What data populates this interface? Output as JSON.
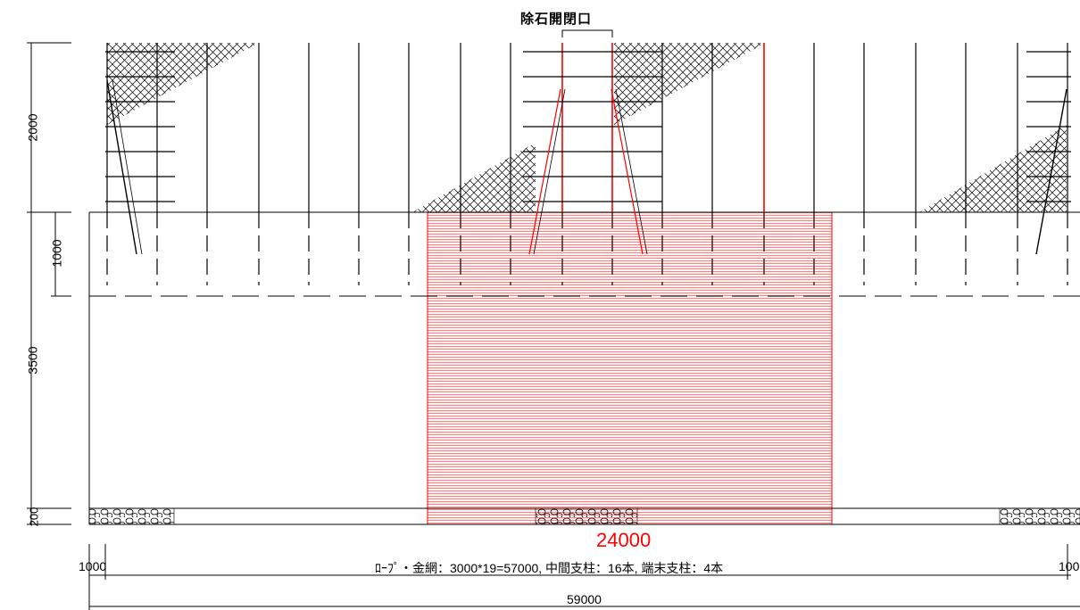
{
  "drawing": {
    "title": "除石開閉口",
    "highlight_value": "24000",
    "note": "ﾛｰﾌﾟ・金網：3000*19=57000, 中間支柱：16本, 端末支柱：4本",
    "total_length": "59000",
    "left_end_offset": "1000",
    "right_end_offset": "100",
    "dims_vertical": {
      "d2000": "2000",
      "d1000": "1000",
      "d3500": "3500",
      "d200": "200"
    }
  },
  "colors": {
    "line": "#000000",
    "highlight": "#ff0000",
    "highlight_fill": "#ffd6d6"
  }
}
